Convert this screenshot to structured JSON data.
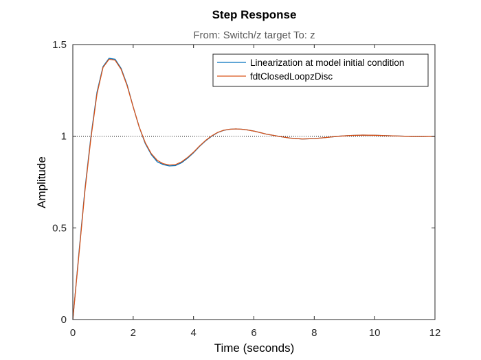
{
  "chart_data": {
    "type": "line",
    "title": "Step Response",
    "subtitle": "From: Switch/z target  To: z",
    "xlabel": "Time (seconds)",
    "ylabel": "Amplitude",
    "xlim": [
      0,
      12
    ],
    "ylim": [
      0,
      1.5
    ],
    "xticks": [
      0,
      2,
      4,
      6,
      8,
      10,
      12
    ],
    "yticks": [
      0,
      0.5,
      1,
      1.5
    ],
    "xtick_labels": [
      "0",
      "2",
      "4",
      "6",
      "8",
      "10",
      "12"
    ],
    "ytick_labels": [
      "0",
      "0.5",
      "1",
      "1.5"
    ],
    "grid": false,
    "legend": "top-right",
    "reference_line": {
      "y": 1,
      "style": "dotted"
    },
    "series": [
      {
        "name": "Linearization at model initial condition",
        "color": "#0072BD",
        "x": [
          0,
          0.2,
          0.4,
          0.6,
          0.8,
          1.0,
          1.2,
          1.4,
          1.6,
          1.8,
          2.0,
          2.2,
          2.4,
          2.6,
          2.8,
          3.0,
          3.2,
          3.4,
          3.6,
          3.8,
          4.0,
          4.2,
          4.4,
          4.6,
          4.8,
          5.0,
          5.2,
          5.4,
          5.6,
          5.8,
          6.0,
          6.4,
          6.8,
          7.2,
          7.6,
          8.0,
          8.4,
          8.8,
          9.2,
          9.6,
          10.0,
          10.4,
          10.8,
          11.2,
          11.6,
          12.0
        ],
        "y": [
          0,
          0.36,
          0.71,
          1.0,
          1.24,
          1.38,
          1.425,
          1.42,
          1.37,
          1.28,
          1.16,
          1.05,
          0.96,
          0.9,
          0.86,
          0.845,
          0.838,
          0.84,
          0.855,
          0.88,
          0.91,
          0.945,
          0.975,
          1.0,
          1.02,
          1.032,
          1.038,
          1.04,
          1.038,
          1.034,
          1.028,
          1.012,
          1.0,
          0.99,
          0.985,
          0.987,
          0.993,
          1.0,
          1.004,
          1.006,
          1.005,
          1.003,
          1.001,
          0.999,
          0.999,
          1.0
        ]
      },
      {
        "name": "fdtClosedLoopzDisc",
        "color": "#D95319",
        "x": [
          0,
          0.2,
          0.4,
          0.6,
          0.8,
          1.0,
          1.2,
          1.4,
          1.6,
          1.8,
          2.0,
          2.2,
          2.4,
          2.6,
          2.8,
          3.0,
          3.2,
          3.4,
          3.6,
          3.8,
          4.0,
          4.2,
          4.4,
          4.6,
          4.8,
          5.0,
          5.2,
          5.4,
          5.6,
          5.8,
          6.0,
          6.4,
          6.8,
          7.2,
          7.6,
          8.0,
          8.4,
          8.8,
          9.2,
          9.6,
          10.0,
          10.4,
          10.8,
          11.2,
          11.6,
          12.0
        ],
        "y": [
          0,
          0.35,
          0.7,
          0.99,
          1.23,
          1.375,
          1.42,
          1.415,
          1.365,
          1.275,
          1.16,
          1.05,
          0.965,
          0.905,
          0.868,
          0.85,
          0.843,
          0.845,
          0.86,
          0.884,
          0.913,
          0.947,
          0.977,
          1.002,
          1.021,
          1.033,
          1.038,
          1.04,
          1.038,
          1.034,
          1.028,
          1.012,
          1.0,
          0.99,
          0.985,
          0.987,
          0.993,
          1.0,
          1.004,
          1.006,
          1.005,
          1.003,
          1.001,
          0.999,
          0.999,
          1.0
        ]
      }
    ]
  }
}
